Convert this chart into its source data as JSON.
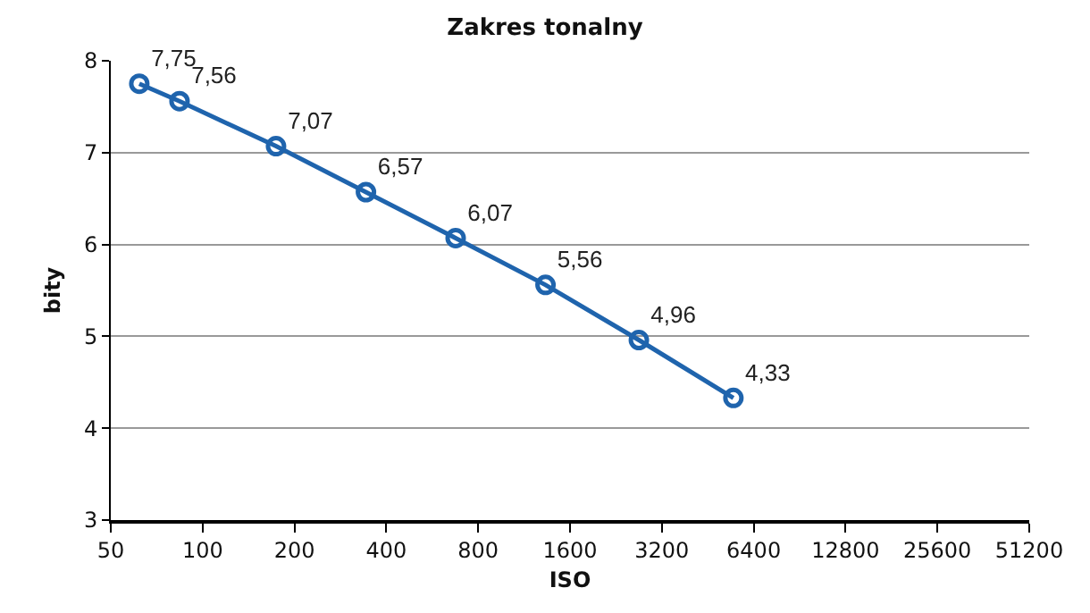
{
  "chart_data": {
    "type": "line",
    "title": "Zakres tonalny",
    "xlabel": "ISO",
    "ylabel": "bity",
    "x": [
      62,
      84,
      174,
      343,
      675,
      1330,
      2690,
      5490
    ],
    "series": [
      {
        "color": "#1f64ad",
        "values": [
          7.75,
          7.56,
          7.07,
          6.57,
          6.07,
          5.56,
          4.96,
          4.33
        ],
        "value_labels": [
          "7,75",
          "7,56",
          "7,07",
          "6,57",
          "6,07",
          "5,56",
          "4,96",
          "4,33"
        ]
      }
    ],
    "log": "x",
    "xlim": [
      50,
      51200
    ],
    "xticks": [
      50,
      100,
      200,
      400,
      800,
      1600,
      3200,
      6400,
      12800,
      25600,
      51200
    ],
    "ylim": [
      3,
      8
    ],
    "yticks": [
      3,
      4,
      5,
      6,
      7,
      8
    ],
    "grid": "y",
    "marker": "circle",
    "line_style": "solid"
  }
}
